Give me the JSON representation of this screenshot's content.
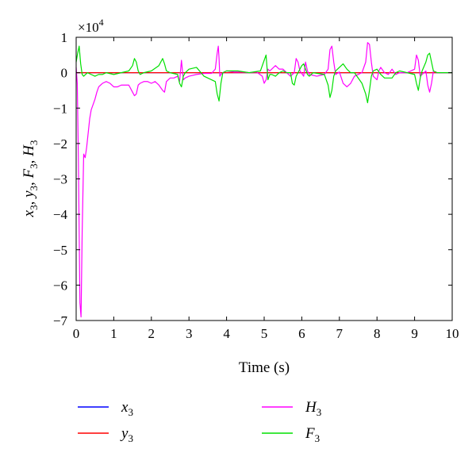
{
  "chart_data": {
    "type": "line",
    "xlabel": "Time (s)",
    "ylabel": {
      "parts": [
        {
          "base": "x",
          "sub": "3",
          "sep": ", "
        },
        {
          "base": "y",
          "sub": "3",
          "sep": ", "
        },
        {
          "base": "F",
          "sub": "3",
          "sep": ", "
        },
        {
          "base": "H",
          "sub": "3",
          "sep": ""
        }
      ]
    },
    "multiplier": {
      "base": "×10",
      "exp": "4"
    },
    "xlim": [
      0,
      10
    ],
    "ylim": [
      -7,
      1
    ],
    "x_ticks": [
      "0",
      "1",
      "2",
      "3",
      "4",
      "5",
      "6",
      "7",
      "8",
      "9",
      "10"
    ],
    "y_ticks": [
      "1",
      "0",
      "−1",
      "−2",
      "−3",
      "−4",
      "−5",
      "−6",
      "−7"
    ],
    "grid": false,
    "legend_placement": "bottom",
    "series": [
      {
        "name": {
          "base": "x",
          "sub": "3"
        },
        "color": "#0000ff",
        "x": [
          0,
          10
        ],
        "y": [
          0,
          0
        ]
      },
      {
        "name": {
          "base": "y",
          "sub": "3"
        },
        "color": "#ff0000",
        "x": [
          0,
          10
        ],
        "y": [
          0,
          0
        ]
      },
      {
        "name": {
          "base": "H",
          "sub": "3"
        },
        "color": "#ff00ff",
        "x": [
          0,
          0.03,
          0.06,
          0.1,
          0.13,
          0.16,
          0.2,
          0.24,
          0.28,
          0.32,
          0.36,
          0.4,
          0.45,
          0.5,
          0.55,
          0.6,
          0.7,
          0.8,
          0.9,
          1.0,
          1.1,
          1.2,
          1.3,
          1.4,
          1.5,
          1.55,
          1.6,
          1.65,
          1.7,
          1.8,
          1.9,
          2.0,
          2.1,
          2.2,
          2.3,
          2.35,
          2.4,
          2.5,
          2.6,
          2.7,
          2.75,
          2.8,
          2.85,
          2.9,
          3.0,
          3.2,
          3.4,
          3.6,
          3.7,
          3.75,
          3.78,
          3.8,
          3.82,
          3.85,
          3.9,
          4.0,
          4.2,
          4.4,
          4.6,
          4.8,
          4.95,
          5.0,
          5.05,
          5.1,
          5.15,
          5.3,
          5.4,
          5.5,
          5.6,
          5.7,
          5.8,
          5.85,
          5.9,
          5.95,
          6.05,
          6.1,
          6.15,
          6.2,
          6.4,
          6.6,
          6.7,
          6.75,
          6.8,
          6.85,
          6.9,
          7.0,
          7.1,
          7.2,
          7.3,
          7.4,
          7.6,
          7.7,
          7.75,
          7.8,
          7.85,
          7.9,
          8.0,
          8.05,
          8.1,
          8.2,
          8.3,
          8.4,
          8.5,
          8.6,
          8.8,
          9.0,
          9.05,
          9.1,
          9.15,
          9.2,
          9.3,
          9.35,
          9.4,
          9.45,
          9.5,
          9.6,
          10
        ],
        "y": [
          0.15,
          -0.3,
          -2.5,
          -6.5,
          -6.9,
          -4.5,
          -2.3,
          -2.4,
          -2.1,
          -1.7,
          -1.3,
          -1.05,
          -0.9,
          -0.75,
          -0.55,
          -0.4,
          -0.3,
          -0.25,
          -0.3,
          -0.4,
          -0.4,
          -0.35,
          -0.35,
          -0.35,
          -0.55,
          -0.65,
          -0.6,
          -0.35,
          -0.3,
          -0.25,
          -0.25,
          -0.3,
          -0.25,
          -0.35,
          -0.5,
          -0.55,
          -0.25,
          -0.15,
          -0.15,
          -0.1,
          -0.25,
          0.35,
          -0.2,
          -0.15,
          -0.1,
          -0.05,
          -0.02,
          -0.02,
          0.1,
          0.55,
          0.75,
          0.4,
          -0.1,
          -0.05,
          0.0,
          0.05,
          0.02,
          0.02,
          0.0,
          0.02,
          -0.1,
          -0.3,
          -0.2,
          0.1,
          0.05,
          0.2,
          0.1,
          0.1,
          0.0,
          -0.1,
          0.0,
          0.4,
          0.3,
          0.05,
          -0.1,
          0.3,
          0.05,
          -0.05,
          -0.1,
          -0.05,
          0.1,
          0.65,
          0.75,
          0.3,
          -0.05,
          0.02,
          -0.3,
          -0.4,
          -0.3,
          -0.1,
          0.0,
          0.3,
          0.85,
          0.8,
          0.3,
          -0.1,
          -0.2,
          0.05,
          0.15,
          0.0,
          -0.05,
          0.1,
          -0.05,
          0.0,
          0.0,
          0.1,
          0.5,
          0.35,
          -0.1,
          -0.05,
          0.05,
          -0.35,
          -0.55,
          -0.3,
          0.05,
          0.0,
          0.0
        ]
      },
      {
        "name": {
          "base": "F",
          "sub": "3"
        },
        "color": "#00e000",
        "x": [
          0,
          0.04,
          0.08,
          0.12,
          0.16,
          0.2,
          0.3,
          0.4,
          0.5,
          0.6,
          0.7,
          0.8,
          1.0,
          1.2,
          1.4,
          1.5,
          1.55,
          1.6,
          1.65,
          1.7,
          1.8,
          2.0,
          2.2,
          2.3,
          2.35,
          2.4,
          2.5,
          2.7,
          2.75,
          2.8,
          2.85,
          2.9,
          3.0,
          3.2,
          3.4,
          3.6,
          3.7,
          3.75,
          3.8,
          3.85,
          3.9,
          4.0,
          4.3,
          4.6,
          4.9,
          5.0,
          5.05,
          5.1,
          5.15,
          5.2,
          5.3,
          5.4,
          5.5,
          5.6,
          5.7,
          5.75,
          5.8,
          5.85,
          5.9,
          6.0,
          6.05,
          6.1,
          6.15,
          6.2,
          6.3,
          6.6,
          6.7,
          6.75,
          6.8,
          6.85,
          6.9,
          7.0,
          7.1,
          7.2,
          7.3,
          7.4,
          7.6,
          7.7,
          7.75,
          7.8,
          7.85,
          7.9,
          8.0,
          8.1,
          8.2,
          8.4,
          8.5,
          8.6,
          8.8,
          9.0,
          9.05,
          9.1,
          9.15,
          9.2,
          9.3,
          9.35,
          9.4,
          9.45,
          9.5,
          9.6,
          10
        ],
        "y": [
          0.3,
          0.55,
          0.75,
          0.25,
          -0.05,
          -0.1,
          0.0,
          -0.05,
          -0.1,
          -0.05,
          -0.05,
          0.0,
          -0.05,
          0.0,
          0.05,
          0.2,
          0.4,
          0.3,
          0.05,
          -0.05,
          0.0,
          0.05,
          0.2,
          0.4,
          0.25,
          0.05,
          0.0,
          -0.05,
          -0.3,
          -0.4,
          -0.1,
          0.0,
          0.1,
          0.15,
          -0.1,
          -0.2,
          -0.25,
          -0.6,
          -0.8,
          -0.3,
          0.0,
          0.05,
          0.05,
          0.0,
          0.05,
          0.35,
          0.5,
          -0.2,
          -0.05,
          -0.05,
          -0.1,
          0.0,
          0.05,
          0.0,
          0.0,
          -0.3,
          -0.35,
          -0.1,
          0.0,
          0.2,
          0.25,
          0.1,
          -0.05,
          -0.1,
          0.0,
          -0.05,
          -0.35,
          -0.7,
          -0.5,
          -0.1,
          0.05,
          0.15,
          0.25,
          0.1,
          0.0,
          0.0,
          -0.3,
          -0.6,
          -0.85,
          -0.5,
          -0.1,
          0.05,
          0.1,
          -0.05,
          -0.15,
          -0.15,
          0.0,
          0.05,
          0.0,
          -0.05,
          -0.3,
          -0.5,
          -0.15,
          0.05,
          0.3,
          0.5,
          0.55,
          0.3,
          0.05,
          0.0,
          0.0
        ]
      }
    ]
  }
}
